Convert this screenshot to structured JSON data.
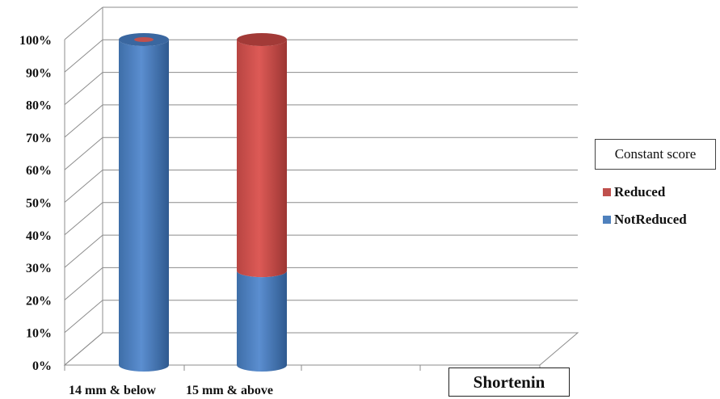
{
  "chart_data": {
    "type": "bar",
    "stacked": true,
    "percent_stacked": true,
    "three_d_cylinder": true,
    "categories": [
      "14 mm & below",
      "15 mm & above"
    ],
    "series": [
      {
        "name": "Not Reduced",
        "values": [
          100,
          29
        ],
        "color": "#4F81BD"
      },
      {
        "name": "Reduced",
        "values": [
          0,
          71
        ],
        "color": "#C0504D"
      }
    ],
    "y_ticks": [
      "0%",
      "10%",
      "20%",
      "30%",
      "40%",
      "50%",
      "60%",
      "70%",
      "80%",
      "90%",
      "100%"
    ],
    "ylim": [
      0,
      100
    ],
    "grid": true,
    "legend_title": "Constant score",
    "legend_labels": [
      "Reduced",
      "NotReduced"
    ],
    "legend_position": "right",
    "category_labels": [
      "14 mm & below",
      "15 mm & above"
    ],
    "x_title": "Shortenin"
  }
}
